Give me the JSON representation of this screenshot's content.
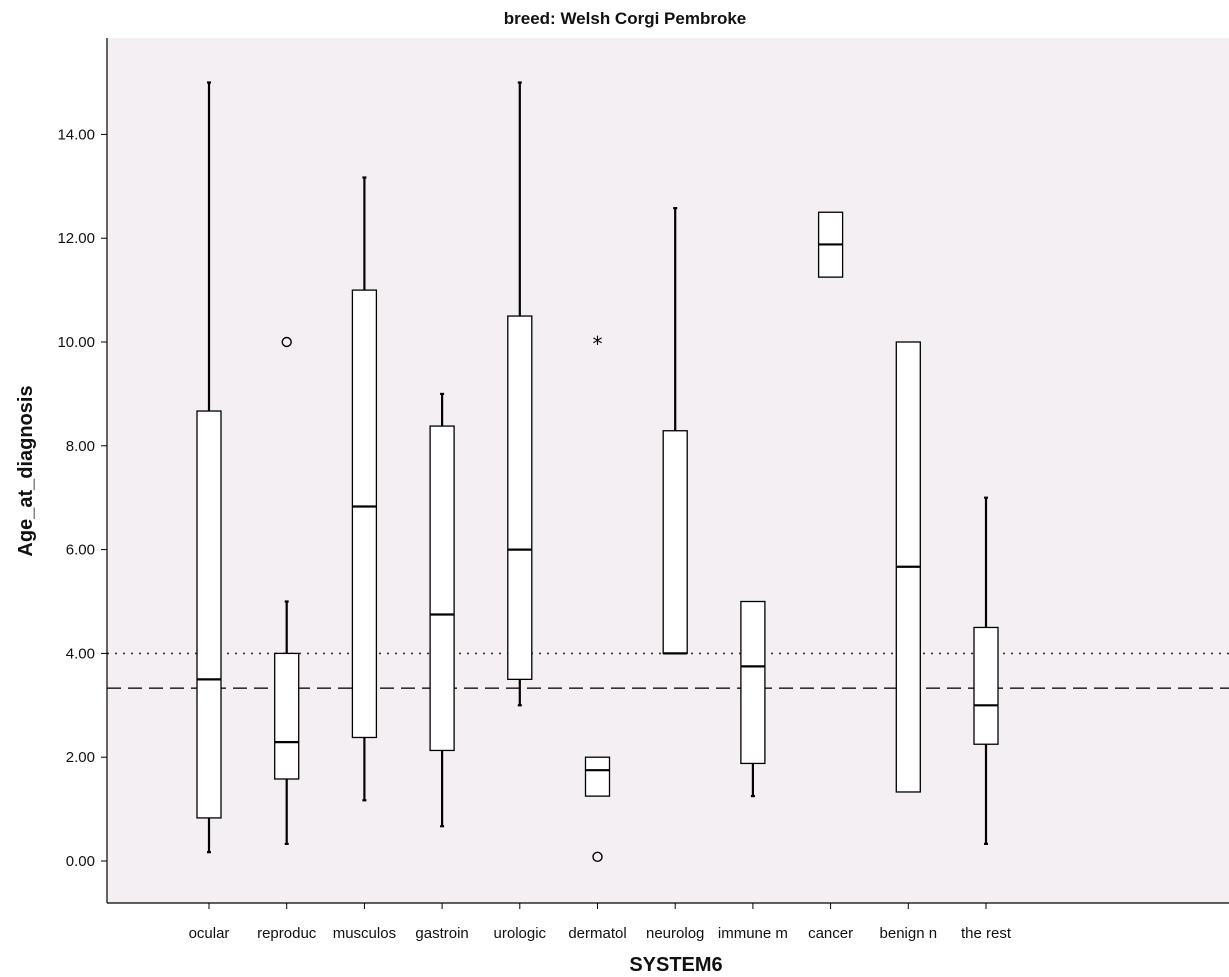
{
  "chart_data": {
    "type": "boxplot",
    "title": "breed: Welsh Corgi Pembroke",
    "xlabel": "SYSTEM6",
    "ylabel": "Age_at_diagnosis",
    "ylim": [
      -0.85,
      15.8
    ],
    "yticks": [
      0,
      2,
      4,
      6,
      8,
      10,
      12,
      14
    ],
    "ytick_labels": [
      "0.00",
      "2.00",
      "4.00",
      "6.00",
      "8.00",
      "10.00",
      "12.00",
      "14.00"
    ],
    "grid": false,
    "background_color": "#f4eff3",
    "reference_lines": [
      {
        "value": 4.0,
        "style": "dotted"
      },
      {
        "value": 3.33,
        "style": "dashed"
      }
    ],
    "categories": [
      "ocular",
      "reproduc",
      "musculos",
      "gastroin",
      "urologic",
      "dermatol",
      "neurolog",
      "immune m",
      "cancer",
      "benign n",
      "the rest"
    ],
    "boxes": [
      {
        "category": "ocular",
        "whisker_low": 0.17,
        "q1": 0.83,
        "median": 3.5,
        "q3": 8.67,
        "whisker_high": 15.0,
        "outliers": [],
        "extremes": []
      },
      {
        "category": "reproduc",
        "whisker_low": 0.33,
        "q1": 1.58,
        "median": 2.29,
        "q3": 4.0,
        "whisker_high": 5.0,
        "outliers": [
          10.0
        ],
        "extremes": []
      },
      {
        "category": "musculos",
        "whisker_low": 1.17,
        "q1": 2.38,
        "median": 6.83,
        "q3": 11.0,
        "whisker_high": 13.17,
        "outliers": [],
        "extremes": []
      },
      {
        "category": "gastroin",
        "whisker_low": 0.67,
        "q1": 2.13,
        "median": 4.75,
        "q3": 8.38,
        "whisker_high": 9.0,
        "outliers": [],
        "extremes": []
      },
      {
        "category": "urologic",
        "whisker_low": 3.0,
        "q1": 3.5,
        "median": 6.0,
        "q3": 10.5,
        "whisker_high": 15.0,
        "outliers": [],
        "extremes": []
      },
      {
        "category": "dermatol",
        "whisker_low": 1.25,
        "q1": 1.25,
        "median": 1.75,
        "q3": 2.0,
        "whisker_high": 2.0,
        "outliers": [
          0.08
        ],
        "extremes": [
          10.0
        ]
      },
      {
        "category": "neurolog",
        "whisker_low": 4.0,
        "q1": 4.0,
        "median": 4.0,
        "q3": 8.29,
        "whisker_high": 12.58,
        "outliers": [],
        "extremes": []
      },
      {
        "category": "immune m",
        "whisker_low": 1.25,
        "q1": 1.88,
        "median": 3.75,
        "q3": 5.0,
        "whisker_high": 5.0,
        "outliers": [],
        "extremes": []
      },
      {
        "category": "cancer",
        "whisker_low": 11.25,
        "q1": 11.25,
        "median": 11.88,
        "q3": 12.5,
        "whisker_high": 12.5,
        "outliers": [],
        "extremes": []
      },
      {
        "category": "benign n",
        "whisker_low": 1.33,
        "q1": 1.33,
        "median": 5.67,
        "q3": 10.0,
        "whisker_high": 10.0,
        "outliers": [],
        "extremes": []
      },
      {
        "category": "the rest",
        "whisker_low": 0.33,
        "q1": 2.25,
        "median": 3.0,
        "q3": 4.5,
        "whisker_high": 7.0,
        "outliers": [],
        "extremes": []
      }
    ]
  }
}
